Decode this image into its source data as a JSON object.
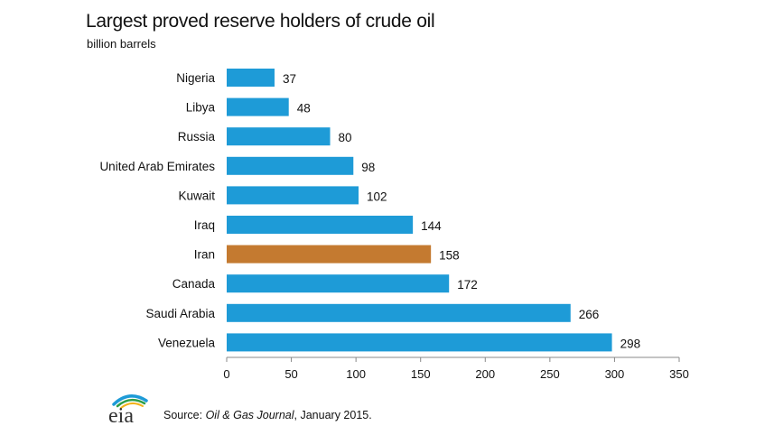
{
  "header": {
    "title": "Largest proved reserve holders of  crude oil",
    "subtitle": "billion barrels"
  },
  "chart_data": {
    "type": "bar",
    "orientation": "horizontal",
    "title": "Largest proved reserve holders of  crude oil",
    "ylabel": "billion barrels",
    "xlabel": "",
    "categories": [
      "Nigeria",
      "Libya",
      "Russia",
      "United Arab Emirates",
      "Kuwait",
      "Iraq",
      "Iran",
      "Canada",
      "Saudi Arabia",
      "Venezuela"
    ],
    "values": [
      37,
      48,
      80,
      98,
      102,
      144,
      158,
      172,
      266,
      298
    ],
    "xlim": [
      0,
      350
    ],
    "xticks": [
      0,
      50,
      100,
      150,
      200,
      250,
      300,
      350
    ],
    "highlight": "Iran",
    "colors": {
      "default": "#1e9bd7",
      "highlight": "#c47a30",
      "axis": "#888888"
    },
    "grid": false,
    "data_labels": true
  },
  "footer": {
    "logo_text": "eia",
    "source_prefix": "Source: ",
    "source_publication": "Oil & Gas Journal",
    "source_suffix": ", January 2015."
  }
}
